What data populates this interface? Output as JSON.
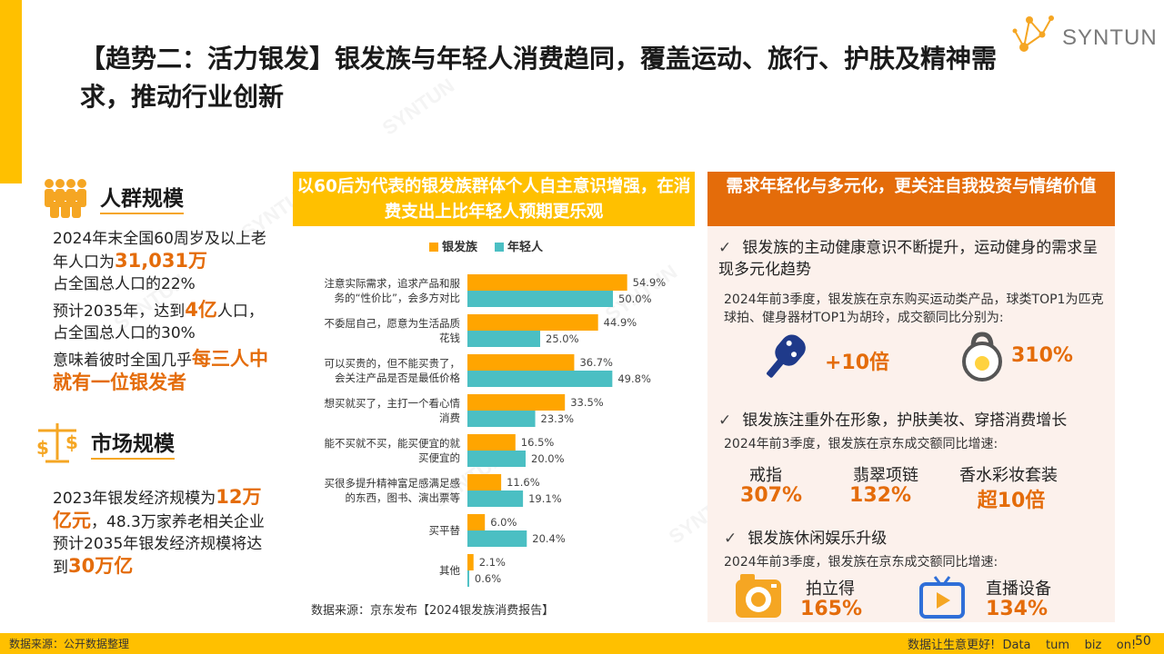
{
  "title": "【趋势二：活力银发】银发族与年轻人消费趋同，覆盖运动、旅行、护肤及精神需求，推动行业创新",
  "logo": {
    "text": "SYNTUN"
  },
  "watermark": "SYNTUN",
  "population": {
    "heading": "人群规模",
    "line1_pre": "2024年末全国60周岁及以上老年人口为",
    "line1_hl": "31,031万",
    "line2": "占全国总人口的22%",
    "line3_pre": "预计2035年，达到",
    "line3_hl": "4亿",
    "line3_post": "人口， 占全国总人口的30%",
    "line4_pre": "意味着彼时全国几乎",
    "line4_hl": "每三人中就有一位银发者"
  },
  "market": {
    "heading": "市场规模",
    "line1_pre": "2023年银发经济规模为",
    "line1_hl": "12万亿元",
    "line1_post": "，48.3万家养老相关企业",
    "line2_pre": "预计2035年银发经济规模将达到",
    "line2_hl": "30万亿"
  },
  "middle": {
    "banner": "以60后为代表的银发族群体个人自主意识增强，在消费支出上比年轻人预期更乐观",
    "source": "数据来源：京东发布【2024银发族消费报告】"
  },
  "chart_data": {
    "type": "bar",
    "orientation": "horizontal",
    "legend": [
      "银发族",
      "年轻人"
    ],
    "colors": [
      "#FFA500",
      "#4BBFC3"
    ],
    "categories": [
      [
        "注意实际需求，追求产品和服",
        "务的“性价比”，会多方对比"
      ],
      [
        "不委屈自己，愿意为生活品质",
        "花钱"
      ],
      [
        "可以买贵的，但不能买贵了，",
        "会关注产品是否是最低价格"
      ],
      [
        "想买就买了，主打一个看心情",
        "消费"
      ],
      [
        "能不买就不买，能买便宜的就",
        "买便宜的"
      ],
      [
        "买很多提升精神富足感满足感",
        "的东西，图书、演出票等"
      ],
      [
        "买平替"
      ],
      [
        "其他"
      ]
    ],
    "series": [
      {
        "name": "银发族",
        "values": [
          54.9,
          44.9,
          36.7,
          33.5,
          16.5,
          11.6,
          6.0,
          2.1
        ]
      },
      {
        "name": "年轻人",
        "values": [
          50.0,
          25.0,
          49.8,
          23.3,
          20.0,
          19.1,
          20.4,
          0.6
        ]
      }
    ],
    "unit": "%"
  },
  "right": {
    "banner": "需求年轻化与多元化，更关注自我投资与情绪价值",
    "tick": "✓",
    "b1": "银发族的主动健康意识不断提升，运动健身的需求呈现多元化趋势",
    "b1_sub": "2024年前3季度，银发族在京东购买运动类产品，球类TOP1为匹克球拍、健身器材TOP1为胡玲，成交额同比分别为:",
    "b1_v1": "+10倍",
    "b1_v2": "310%",
    "b2": "银发族注重外在形象，护肤美妆、穿搭消费增长",
    "b2_sub": "2024年前3季度，银发族在京东成交额同比增速:",
    "b2_items": [
      {
        "label": "戒指",
        "value": "307%"
      },
      {
        "label": "翡翠项链",
        "value": "132%"
      },
      {
        "label": "香水彩妆套装",
        "value": "超10倍"
      }
    ],
    "b3": "银发族休闲娱乐升级",
    "b3_sub": "2024年前3季度，银发族在京东成交额同比增速:",
    "b3_items": [
      {
        "label": "拍立得",
        "value": "165%"
      },
      {
        "label": "直播设备",
        "value": "134%"
      }
    ]
  },
  "footer": {
    "source": "数据来源：公开数据整理",
    "slogan": "数据让生意更好!  Data    tum    biz    on!",
    "page": "50"
  }
}
